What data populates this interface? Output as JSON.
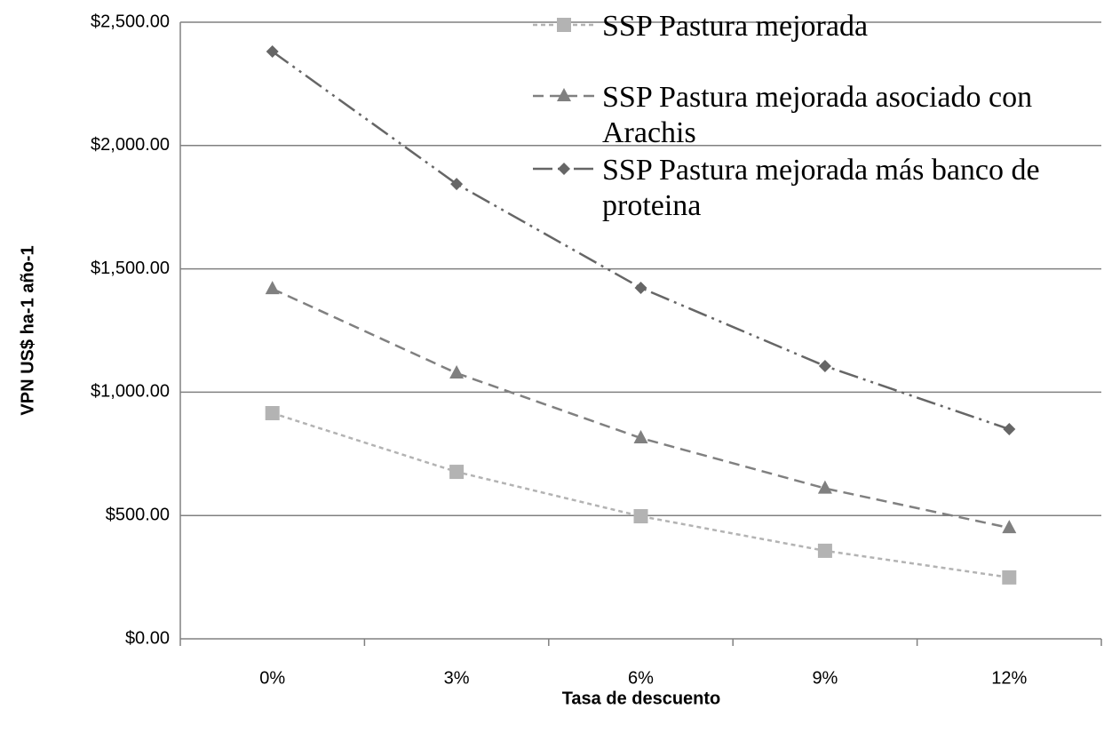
{
  "chart_data": {
    "type": "line",
    "ylabel": "VPN US$ ha-1 año-1",
    "xlabel": "Tasa de descuento",
    "categories": [
      "0%",
      "3%",
      "6%",
      "9%",
      "12%"
    ],
    "series": [
      {
        "name": "SSP Pastura mejorada",
        "color": "#b3b3b3",
        "marker": "square",
        "dash": "5,4",
        "values": [
          915,
          677,
          497,
          357,
          249
        ]
      },
      {
        "name": "SSP Pastura mejorada asociado con Arachis",
        "color": "#808080",
        "marker": "triangle",
        "dash": "12,7",
        "values": [
          1419,
          1077,
          814,
          610,
          450
        ]
      },
      {
        "name": "SSP Pastura mejorada más banco de proteina",
        "color": "#666666",
        "marker": "diamond",
        "dash": "22,6,3,6,3,6",
        "values": [
          2381,
          1844,
          1423,
          1106,
          850
        ]
      }
    ],
    "ylim": [
      0,
      2500
    ],
    "yticks": [
      {
        "value": 0,
        "label": "$0.00"
      },
      {
        "value": 500,
        "label": "$500.00"
      },
      {
        "value": 1000,
        "label": "$1,000.00"
      },
      {
        "value": 1500,
        "label": "$1,500.00"
      },
      {
        "value": 2000,
        "label": "$2,000.00"
      },
      {
        "value": 2500,
        "label": "$2,500.00"
      }
    ],
    "grid": true
  }
}
